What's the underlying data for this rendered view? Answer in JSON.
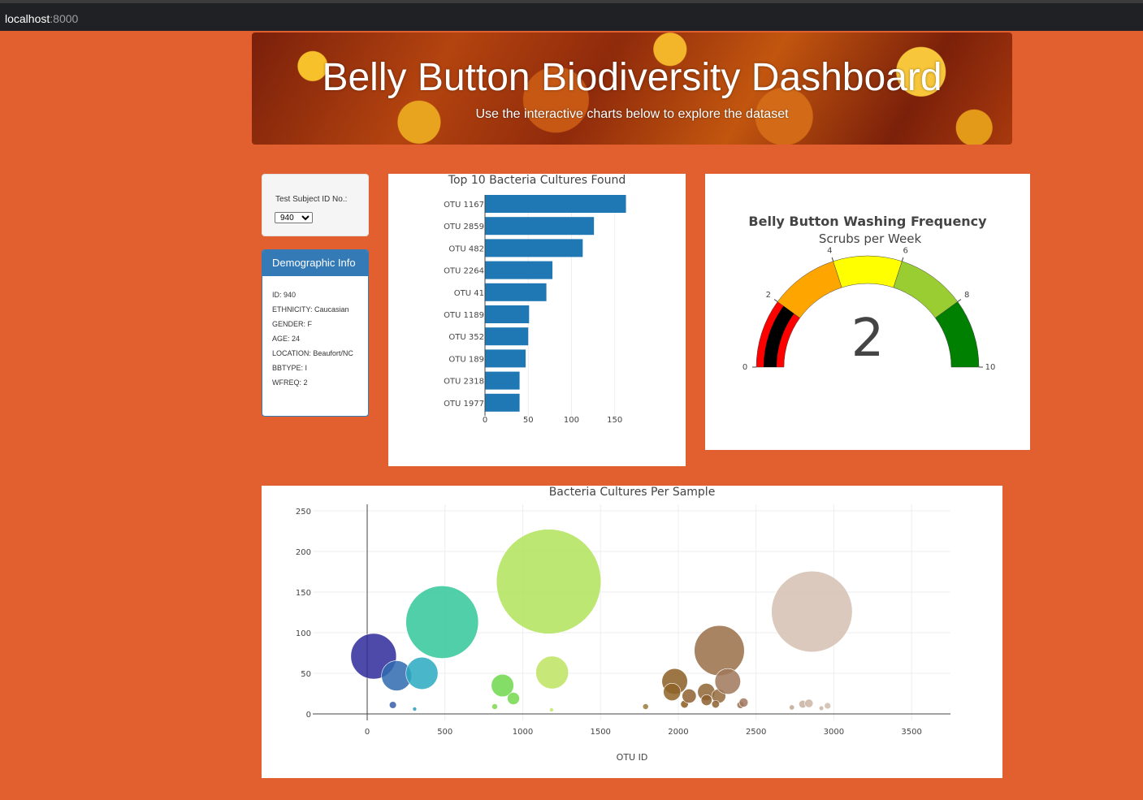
{
  "browser": {
    "host": "localhost",
    "port": ":8000"
  },
  "header": {
    "title": "Belly Button Biodiversity Dashboard",
    "subtitle": "Use the interactive charts below to explore the dataset"
  },
  "selector": {
    "label": "Test Subject ID No.:",
    "value": "940"
  },
  "demographic": {
    "heading": "Demographic Info",
    "lines": [
      "ID: 940",
      "ETHNICITY: Caucasian",
      "GENDER: F",
      "AGE: 24",
      "LOCATION: Beaufort/NC",
      "BBTYPE: I",
      "WFREQ: 2"
    ]
  },
  "chart_data": [
    {
      "type": "bar",
      "orientation": "horizontal",
      "title": "Top 10 Bacteria Cultures Found",
      "categories": [
        "OTU 1167",
        "OTU 2859",
        "OTU 482",
        "OTU 2264",
        "OTU 41",
        "OTU 1189",
        "OTU 352",
        "OTU 189",
        "OTU 2318",
        "OTU 1977"
      ],
      "values": [
        163,
        126,
        113,
        78,
        71,
        51,
        50,
        47,
        40,
        40
      ],
      "xlim": [
        0,
        170
      ],
      "xticks": [
        0,
        50,
        100,
        150
      ],
      "color": "#1f77b4"
    },
    {
      "type": "gauge",
      "title": "Belly Button Washing Frequency",
      "subtitle": "Scrubs per Week",
      "value": 2,
      "range": [
        0,
        10
      ],
      "ticks": [
        0,
        2,
        4,
        6,
        8,
        10
      ],
      "steps": [
        {
          "range": [
            0,
            2
          ],
          "color": "#ff0000"
        },
        {
          "range": [
            2,
            4
          ],
          "color": "#ffa500"
        },
        {
          "range": [
            4,
            6
          ],
          "color": "#ffff00"
        },
        {
          "range": [
            6,
            8
          ],
          "color": "#9acd32"
        },
        {
          "range": [
            8,
            10
          ],
          "color": "#008000"
        }
      ],
      "bar_color": "#000000"
    },
    {
      "type": "scatter",
      "title": "Bacteria Cultures Per Sample",
      "xlabel": "OTU ID",
      "xlim": [
        -350,
        3750
      ],
      "ylim": [
        -8,
        258
      ],
      "xticks": [
        0,
        500,
        1000,
        1500,
        2000,
        2500,
        3000,
        3500
      ],
      "yticks": [
        0,
        50,
        100,
        150,
        200,
        250
      ],
      "points": [
        {
          "x": 41,
          "y": 71,
          "color": "#2e2a9a"
        },
        {
          "x": 189,
          "y": 47,
          "color": "#2f6bb0"
        },
        {
          "x": 352,
          "y": 50,
          "color": "#2aa9c1"
        },
        {
          "x": 482,
          "y": 113,
          "color": "#31c79a"
        },
        {
          "x": 1167,
          "y": 163,
          "color": "#b2e35a"
        },
        {
          "x": 1189,
          "y": 51,
          "color": "#bde460"
        },
        {
          "x": 870,
          "y": 35,
          "color": "#6fd74b"
        },
        {
          "x": 940,
          "y": 19,
          "color": "#74d84c"
        },
        {
          "x": 820,
          "y": 9,
          "color": "#7bd84f"
        },
        {
          "x": 165,
          "y": 11,
          "color": "#3a5ea8"
        },
        {
          "x": 305,
          "y": 6,
          "color": "#2a9bbd"
        },
        {
          "x": 1185,
          "y": 5,
          "color": "#c7e66a"
        },
        {
          "x": 1790,
          "y": 9,
          "color": "#9a7a3a"
        },
        {
          "x": 1977,
          "y": 40,
          "color": "#8b5e24"
        },
        {
          "x": 1960,
          "y": 27,
          "color": "#8f6428"
        },
        {
          "x": 2040,
          "y": 12,
          "color": "#8c5a20"
        },
        {
          "x": 2070,
          "y": 22,
          "color": "#8e6030"
        },
        {
          "x": 2180,
          "y": 27,
          "color": "#8f6535"
        },
        {
          "x": 2182,
          "y": 17,
          "color": "#8d5f30"
        },
        {
          "x": 2260,
          "y": 22,
          "color": "#936a3c"
        },
        {
          "x": 2264,
          "y": 78,
          "color": "#9a6f48"
        },
        {
          "x": 2318,
          "y": 40,
          "color": "#a0785a"
        },
        {
          "x": 2240,
          "y": 12,
          "color": "#8d6030"
        },
        {
          "x": 2400,
          "y": 11,
          "color": "#9a7050"
        },
        {
          "x": 2420,
          "y": 14,
          "color": "#a07860"
        },
        {
          "x": 2859,
          "y": 126,
          "color": "#d4c0b0"
        },
        {
          "x": 2800,
          "y": 12,
          "color": "#c7b0a0"
        },
        {
          "x": 2840,
          "y": 13,
          "color": "#cbb5a5"
        },
        {
          "x": 2960,
          "y": 10,
          "color": "#cfbcad"
        },
        {
          "x": 2920,
          "y": 7,
          "color": "#c7b3a3"
        },
        {
          "x": 2730,
          "y": 8,
          "color": "#c0a890"
        }
      ]
    }
  ]
}
